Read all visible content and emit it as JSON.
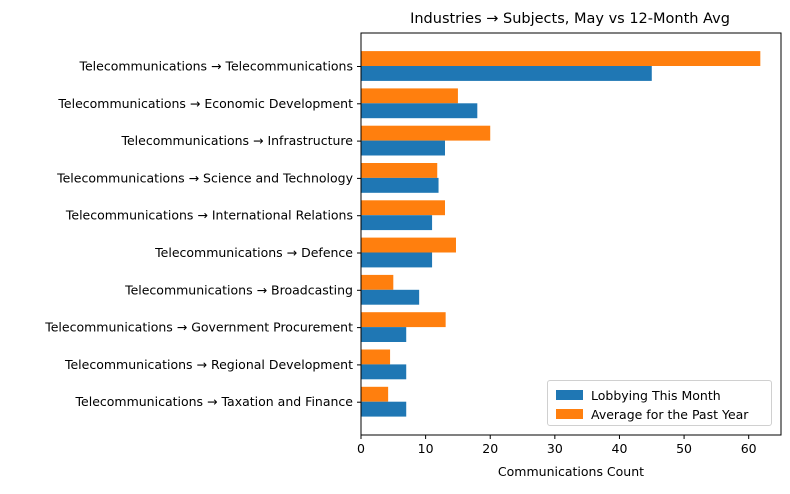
{
  "chart_data": {
    "type": "bar",
    "orientation": "horizontal",
    "title": "Industries → Subjects, May vs 12-Month Avg",
    "xlabel": "Communications Count",
    "ylabel": "",
    "xlim": [
      0,
      65
    ],
    "xticks": [
      0,
      10,
      20,
      30,
      40,
      50,
      60
    ],
    "grid": false,
    "legend_position": "lower-right",
    "categories": [
      "Telecommunications → Telecommunications",
      "Telecommunications → Economic Development",
      "Telecommunications → Infrastructure",
      "Telecommunications → Science and Technology",
      "Telecommunications → International Relations",
      "Telecommunications → Defence",
      "Telecommunications → Broadcasting",
      "Telecommunications → Government Procurement",
      "Telecommunications → Regional Development",
      "Telecommunications → Taxation and Finance"
    ],
    "series": [
      {
        "name": "Lobbying This Month",
        "color": "#1f77b4",
        "values": [
          45,
          18,
          13,
          12,
          11,
          11,
          9,
          7,
          7,
          7
        ]
      },
      {
        "name": "Average for the Past Year",
        "color": "#ff7f0e",
        "values": [
          61.8,
          15,
          20,
          11.8,
          13,
          14.7,
          5,
          13.1,
          4.5,
          4.2
        ]
      }
    ]
  }
}
